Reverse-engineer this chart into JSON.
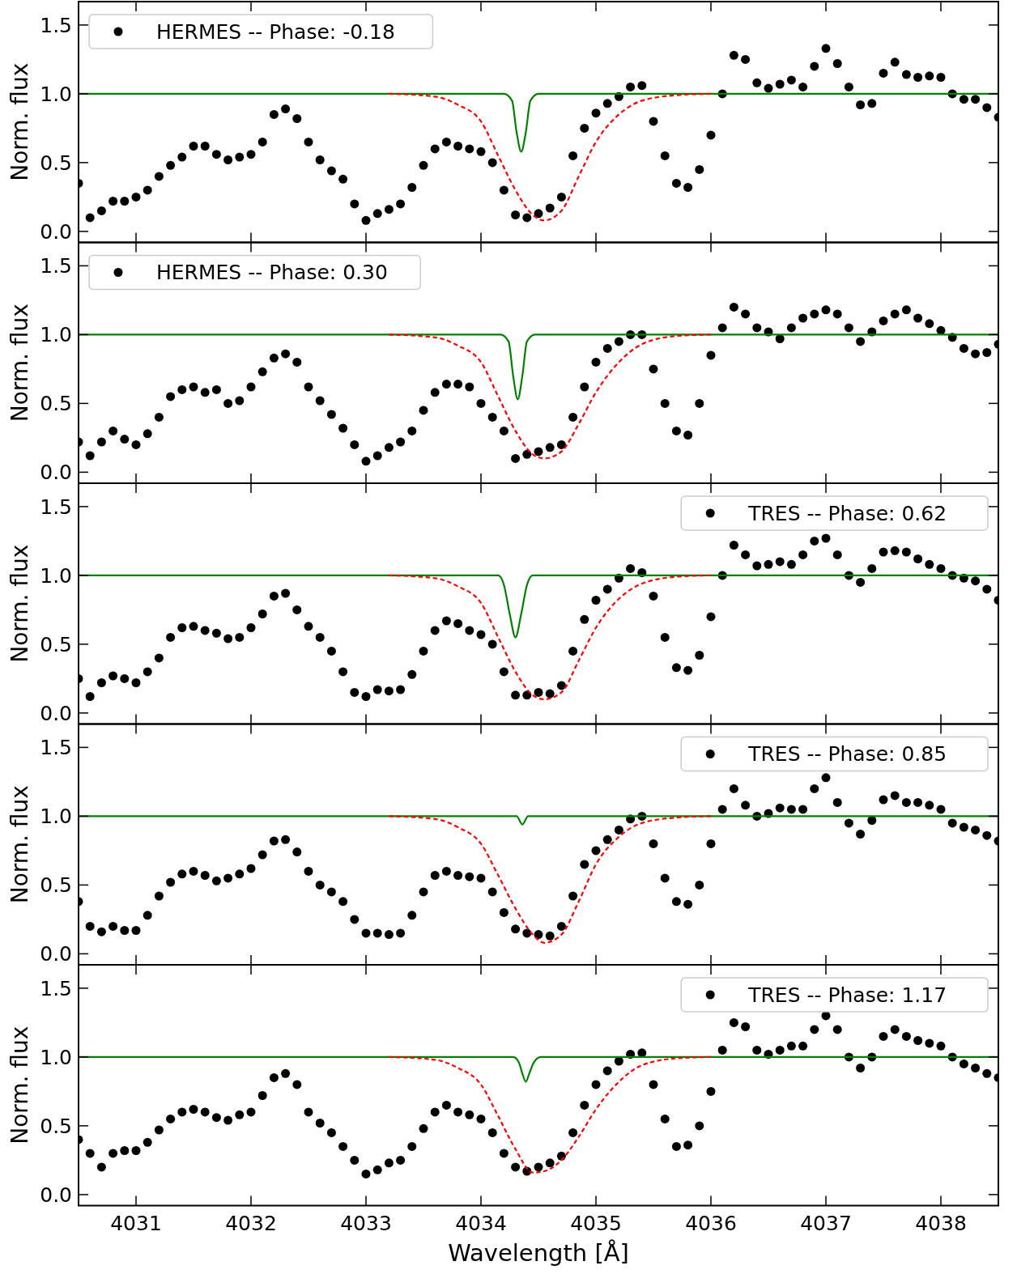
{
  "chart_data": [
    {
      "type": "scatter",
      "ylabel": "Norm. flux",
      "xlim": [
        4030.5,
        4038.5
      ],
      "ylim": [
        -0.08,
        1.67
      ],
      "xticks": [
        4031,
        4032,
        4033,
        4034,
        4035,
        4036,
        4037,
        4038
      ],
      "yticks": [
        {
          "value": 0,
          "label": "0.0"
        },
        {
          "value": 0.5,
          "label": "0.5"
        },
        {
          "value": 1,
          "label": "1.0"
        },
        {
          "value": 1.5,
          "label": "1.5"
        }
      ],
      "tick_labels": "y",
      "legend": "top left",
      "marker": "circle",
      "x": [
        4030.5,
        4030.6,
        4030.7,
        4030.8,
        4030.9,
        4031.0,
        4031.1,
        4031.2,
        4031.3,
        4031.4,
        4031.5,
        4031.6,
        4031.7,
        4031.8,
        4031.9,
        4032.0,
        4032.1,
        4032.2,
        4032.3,
        4032.4,
        4032.5,
        4032.6,
        4032.7,
        4032.8,
        4032.9,
        4033.0,
        4033.1,
        4033.2,
        4033.3,
        4033.4,
        4033.5,
        4033.6,
        4033.7,
        4033.8,
        4033.9,
        4034.0,
        4034.1,
        4034.2,
        4034.3,
        4034.4,
        4034.5,
        4034.6,
        4034.7,
        4034.8,
        4034.9,
        4035.0,
        4035.1,
        4035.2,
        4035.3,
        4035.4,
        4035.5,
        4035.6,
        4035.7,
        4035.8,
        4035.9,
        4036.0,
        4036.1,
        4036.2,
        4036.3,
        4036.4,
        4036.5,
        4036.6,
        4036.7,
        4036.8,
        4036.9,
        4037.0,
        4037.1,
        4037.2,
        4037.3,
        4037.4,
        4037.5,
        4037.6,
        4037.7,
        4037.8,
        4037.9,
        4038.0,
        4038.1,
        4038.2,
        4038.3,
        4038.4,
        4038.5
      ],
      "series": [
        {
          "name": "HERMES -- Phase: -0.18",
          "color": "#000000",
          "values": [
            0.35,
            0.1,
            0.15,
            0.22,
            0.22,
            0.25,
            0.3,
            0.4,
            0.48,
            0.54,
            0.62,
            0.62,
            0.56,
            0.52,
            0.54,
            0.56,
            0.65,
            0.85,
            0.89,
            0.82,
            0.65,
            0.52,
            0.44,
            0.38,
            0.2,
            0.08,
            0.13,
            0.16,
            0.2,
            0.32,
            0.48,
            0.6,
            0.65,
            0.62,
            0.6,
            0.58,
            0.5,
            0.3,
            0.12,
            0.1,
            0.13,
            0.17,
            0.25,
            0.55,
            0.75,
            0.86,
            0.93,
            0.98,
            1.05,
            1.06,
            0.8,
            0.55,
            0.35,
            0.32,
            0.45,
            0.7,
            1.0,
            1.28,
            1.25,
            1.08,
            1.04,
            1.07,
            1.1,
            1.05,
            1.2,
            1.33,
            1.22,
            1.05,
            0.92,
            0.93,
            1.15,
            1.23,
            1.14,
            1.12,
            1.13,
            1.12,
            1.0,
            0.96,
            0.96,
            0.9,
            0.83
          ]
        },
        {
          "type": "line",
          "color": "#ff0000",
          "line_style": "dashed",
          "x": [
            4033.2,
            4033.6,
            4033.8,
            4034.0,
            4034.15,
            4034.3,
            4034.45,
            4034.55,
            4034.7,
            4034.85,
            4035.0,
            4035.2,
            4035.4,
            4035.7,
            4036.0
          ],
          "marker": "none",
          "values": [
            1.0,
            0.98,
            0.92,
            0.8,
            0.55,
            0.3,
            0.12,
            0.08,
            0.15,
            0.4,
            0.65,
            0.85,
            0.95,
            0.99,
            1.0
          ]
        },
        {
          "type": "line",
          "color": "#008000",
          "line_style": "solid",
          "marker": "none",
          "x": [
            4030.5,
            4034.2,
            4034.27,
            4034.31,
            4034.35,
            4034.39,
            4034.43,
            4034.5,
            4038.5
          ],
          "values": [
            1.0,
            1.0,
            0.95,
            0.72,
            0.58,
            0.72,
            0.95,
            1.0,
            1.0
          ]
        }
      ]
    },
    {
      "type": "scatter",
      "ylabel": "Norm. flux",
      "xlim": [
        4030.5,
        4038.5
      ],
      "ylim": [
        -0.08,
        1.67
      ],
      "xticks": [
        4031,
        4032,
        4033,
        4034,
        4035,
        4036,
        4037,
        4038
      ],
      "yticks": [
        {
          "value": 0,
          "label": "0.0"
        },
        {
          "value": 0.5,
          "label": "0.5"
        },
        {
          "value": 1,
          "label": "1.0"
        },
        {
          "value": 1.5,
          "label": "1.5"
        }
      ],
      "tick_labels": "y",
      "legend": "top left",
      "marker": "circle",
      "x": [
        4030.5,
        4030.6,
        4030.7,
        4030.8,
        4030.9,
        4031.0,
        4031.1,
        4031.2,
        4031.3,
        4031.4,
        4031.5,
        4031.6,
        4031.7,
        4031.8,
        4031.9,
        4032.0,
        4032.1,
        4032.2,
        4032.3,
        4032.4,
        4032.5,
        4032.6,
        4032.7,
        4032.8,
        4032.9,
        4033.0,
        4033.1,
        4033.2,
        4033.3,
        4033.4,
        4033.5,
        4033.6,
        4033.7,
        4033.8,
        4033.9,
        4034.0,
        4034.1,
        4034.2,
        4034.3,
        4034.4,
        4034.5,
        4034.6,
        4034.7,
        4034.8,
        4034.9,
        4035.0,
        4035.1,
        4035.2,
        4035.3,
        4035.4,
        4035.5,
        4035.6,
        4035.7,
        4035.8,
        4035.9,
        4036.0,
        4036.1,
        4036.2,
        4036.3,
        4036.4,
        4036.5,
        4036.6,
        4036.7,
        4036.8,
        4036.9,
        4037.0,
        4037.1,
        4037.2,
        4037.3,
        4037.4,
        4037.5,
        4037.6,
        4037.7,
        4037.8,
        4037.9,
        4038.0,
        4038.1,
        4038.2,
        4038.3,
        4038.4,
        4038.5
      ],
      "series": [
        {
          "name": "HERMES -- Phase: 0.30",
          "color": "#000000",
          "values": [
            0.22,
            0.12,
            0.22,
            0.3,
            0.24,
            0.2,
            0.28,
            0.4,
            0.55,
            0.6,
            0.62,
            0.58,
            0.6,
            0.5,
            0.52,
            0.62,
            0.73,
            0.83,
            0.86,
            0.8,
            0.62,
            0.52,
            0.42,
            0.32,
            0.2,
            0.08,
            0.12,
            0.18,
            0.22,
            0.3,
            0.45,
            0.58,
            0.64,
            0.64,
            0.62,
            0.5,
            0.4,
            0.3,
            0.1,
            0.13,
            0.15,
            0.18,
            0.2,
            0.4,
            0.62,
            0.8,
            0.9,
            0.95,
            1.0,
            1.0,
            0.75,
            0.5,
            0.3,
            0.27,
            0.5,
            0.85,
            1.05,
            1.2,
            1.15,
            1.05,
            1.02,
            0.97,
            1.05,
            1.12,
            1.15,
            1.18,
            1.15,
            1.05,
            0.95,
            1.02,
            1.1,
            1.15,
            1.18,
            1.12,
            1.08,
            1.03,
            0.98,
            0.9,
            0.86,
            0.87,
            0.93
          ]
        },
        {
          "type": "line",
          "color": "#ff0000",
          "line_style": "dashed",
          "x": [
            4033.2,
            4033.6,
            4033.8,
            4034.0,
            4034.15,
            4034.3,
            4034.45,
            4034.55,
            4034.7,
            4034.85,
            4035.0,
            4035.2,
            4035.4,
            4035.7,
            4036.0
          ],
          "marker": "none",
          "values": [
            1.0,
            0.98,
            0.92,
            0.8,
            0.55,
            0.3,
            0.13,
            0.1,
            0.15,
            0.35,
            0.58,
            0.8,
            0.93,
            0.99,
            1.0
          ]
        },
        {
          "type": "line",
          "color": "#008000",
          "line_style": "solid",
          "marker": "none",
          "x": [
            4030.5,
            4034.17,
            4034.24,
            4034.28,
            4034.32,
            4034.36,
            4034.4,
            4034.47,
            4038.5
          ],
          "values": [
            1.0,
            1.0,
            0.95,
            0.7,
            0.53,
            0.7,
            0.95,
            1.0,
            1.0
          ]
        }
      ]
    },
    {
      "type": "scatter",
      "ylabel": "Norm. flux",
      "xlim": [
        4030.5,
        4038.5
      ],
      "ylim": [
        -0.08,
        1.67
      ],
      "xticks": [
        4031,
        4032,
        4033,
        4034,
        4035,
        4036,
        4037,
        4038
      ],
      "yticks": [
        {
          "value": 0,
          "label": "0.0"
        },
        {
          "value": 0.5,
          "label": "0.5"
        },
        {
          "value": 1,
          "label": "1.0"
        },
        {
          "value": 1.5,
          "label": "1.5"
        }
      ],
      "tick_labels": "y",
      "legend": "top right",
      "marker": "circle",
      "x": [
        4030.5,
        4030.6,
        4030.7,
        4030.8,
        4030.9,
        4031.0,
        4031.1,
        4031.2,
        4031.3,
        4031.4,
        4031.5,
        4031.6,
        4031.7,
        4031.8,
        4031.9,
        4032.0,
        4032.1,
        4032.2,
        4032.3,
        4032.4,
        4032.5,
        4032.6,
        4032.7,
        4032.8,
        4032.9,
        4033.0,
        4033.1,
        4033.2,
        4033.3,
        4033.4,
        4033.5,
        4033.6,
        4033.7,
        4033.8,
        4033.9,
        4034.0,
        4034.1,
        4034.2,
        4034.3,
        4034.4,
        4034.5,
        4034.6,
        4034.7,
        4034.8,
        4034.9,
        4035.0,
        4035.1,
        4035.2,
        4035.3,
        4035.4,
        4035.5,
        4035.6,
        4035.7,
        4035.8,
        4035.9,
        4036.0,
        4036.1,
        4036.2,
        4036.3,
        4036.4,
        4036.5,
        4036.6,
        4036.7,
        4036.8,
        4036.9,
        4037.0,
        4037.1,
        4037.2,
        4037.3,
        4037.4,
        4037.5,
        4037.6,
        4037.7,
        4037.8,
        4037.9,
        4038.0,
        4038.1,
        4038.2,
        4038.3,
        4038.4,
        4038.5
      ],
      "series": [
        {
          "name": "TRES -- Phase: 0.62",
          "color": "#000000",
          "values": [
            0.25,
            0.12,
            0.22,
            0.27,
            0.25,
            0.22,
            0.3,
            0.4,
            0.55,
            0.62,
            0.63,
            0.6,
            0.58,
            0.54,
            0.55,
            0.62,
            0.72,
            0.85,
            0.87,
            0.75,
            0.63,
            0.55,
            0.45,
            0.3,
            0.15,
            0.12,
            0.17,
            0.16,
            0.17,
            0.28,
            0.45,
            0.6,
            0.67,
            0.65,
            0.6,
            0.57,
            0.5,
            0.3,
            0.13,
            0.13,
            0.15,
            0.14,
            0.2,
            0.45,
            0.68,
            0.82,
            0.9,
            0.98,
            1.05,
            1.02,
            0.85,
            0.55,
            0.33,
            0.31,
            0.42,
            0.7,
            1.0,
            1.22,
            1.15,
            1.07,
            1.08,
            1.1,
            1.08,
            1.15,
            1.25,
            1.27,
            1.15,
            1.0,
            0.95,
            1.05,
            1.17,
            1.18,
            1.17,
            1.12,
            1.08,
            1.05,
            1.0,
            0.98,
            0.96,
            0.9,
            0.82
          ]
        },
        {
          "type": "line",
          "color": "#ff0000",
          "line_style": "dashed",
          "x": [
            4033.2,
            4033.6,
            4033.8,
            4034.0,
            4034.15,
            4034.3,
            4034.45,
            4034.55,
            4034.7,
            4034.85,
            4035.0,
            4035.2,
            4035.4,
            4035.7,
            4036.0
          ],
          "marker": "none",
          "values": [
            1.0,
            0.98,
            0.92,
            0.8,
            0.55,
            0.3,
            0.13,
            0.1,
            0.15,
            0.38,
            0.62,
            0.83,
            0.94,
            0.99,
            1.0
          ]
        },
        {
          "type": "line",
          "color": "#008000",
          "line_style": "solid",
          "marker": "none",
          "x": [
            4030.5,
            4034.15,
            4034.2,
            4034.25,
            4034.3,
            4034.35,
            4034.4,
            4034.45,
            4038.5
          ],
          "values": [
            1.0,
            1.0,
            0.93,
            0.72,
            0.55,
            0.72,
            0.93,
            1.0,
            1.0
          ]
        }
      ]
    },
    {
      "type": "scatter",
      "ylabel": "Norm. flux",
      "xlim": [
        4030.5,
        4038.5
      ],
      "ylim": [
        -0.08,
        1.67
      ],
      "xticks": [
        4031,
        4032,
        4033,
        4034,
        4035,
        4036,
        4037,
        4038
      ],
      "yticks": [
        {
          "value": 0,
          "label": "0.0"
        },
        {
          "value": 0.5,
          "label": "0.5"
        },
        {
          "value": 1,
          "label": "1.0"
        },
        {
          "value": 1.5,
          "label": "1.5"
        }
      ],
      "tick_labels": "y",
      "legend": "top right",
      "marker": "circle",
      "x": [
        4030.5,
        4030.6,
        4030.7,
        4030.8,
        4030.9,
        4031.0,
        4031.1,
        4031.2,
        4031.3,
        4031.4,
        4031.5,
        4031.6,
        4031.7,
        4031.8,
        4031.9,
        4032.0,
        4032.1,
        4032.2,
        4032.3,
        4032.4,
        4032.5,
        4032.6,
        4032.7,
        4032.8,
        4032.9,
        4033.0,
        4033.1,
        4033.2,
        4033.3,
        4033.4,
        4033.5,
        4033.6,
        4033.7,
        4033.8,
        4033.9,
        4034.0,
        4034.1,
        4034.2,
        4034.3,
        4034.4,
        4034.5,
        4034.6,
        4034.7,
        4034.8,
        4034.9,
        4035.0,
        4035.1,
        4035.2,
        4035.3,
        4035.4,
        4035.5,
        4035.6,
        4035.7,
        4035.8,
        4035.9,
        4036.0,
        4036.1,
        4036.2,
        4036.3,
        4036.4,
        4036.5,
        4036.6,
        4036.7,
        4036.8,
        4036.9,
        4037.0,
        4037.1,
        4037.2,
        4037.3,
        4037.4,
        4037.5,
        4037.6,
        4037.7,
        4037.8,
        4037.9,
        4038.0,
        4038.1,
        4038.2,
        4038.3,
        4038.4,
        4038.5
      ],
      "series": [
        {
          "name": "TRES -- Phase: 0.85",
          "color": "#000000",
          "values": [
            0.38,
            0.2,
            0.16,
            0.2,
            0.17,
            0.17,
            0.28,
            0.42,
            0.52,
            0.58,
            0.6,
            0.57,
            0.53,
            0.55,
            0.58,
            0.62,
            0.72,
            0.82,
            0.83,
            0.74,
            0.6,
            0.5,
            0.45,
            0.38,
            0.25,
            0.15,
            0.15,
            0.14,
            0.15,
            0.28,
            0.45,
            0.57,
            0.6,
            0.57,
            0.56,
            0.55,
            0.45,
            0.3,
            0.18,
            0.15,
            0.14,
            0.13,
            0.2,
            0.42,
            0.65,
            0.75,
            0.83,
            0.9,
            0.98,
            1.0,
            0.8,
            0.55,
            0.38,
            0.36,
            0.5,
            0.8,
            1.05,
            1.2,
            1.08,
            1.0,
            1.02,
            1.06,
            1.05,
            1.05,
            1.2,
            1.28,
            1.1,
            0.95,
            0.87,
            0.97,
            1.12,
            1.15,
            1.1,
            1.1,
            1.08,
            1.05,
            0.95,
            0.92,
            0.9,
            0.86,
            0.82
          ]
        },
        {
          "type": "line",
          "color": "#ff0000",
          "line_style": "dashed",
          "x": [
            4033.2,
            4033.6,
            4033.8,
            4034.0,
            4034.15,
            4034.3,
            4034.45,
            4034.55,
            4034.7,
            4034.85,
            4035.0,
            4035.2,
            4035.4,
            4035.7,
            4036.0
          ],
          "marker": "none",
          "values": [
            1.0,
            0.98,
            0.92,
            0.8,
            0.57,
            0.33,
            0.14,
            0.08,
            0.14,
            0.38,
            0.65,
            0.85,
            0.95,
            0.99,
            1.0
          ]
        },
        {
          "type": "line",
          "color": "#008000",
          "line_style": "solid",
          "marker": "none",
          "x": [
            4030.5,
            4034.31,
            4034.36,
            4034.41,
            4038.5
          ],
          "values": [
            1.0,
            1.0,
            0.94,
            1.0,
            1.0
          ]
        }
      ]
    },
    {
      "type": "scatter",
      "xlabel": "Wavelength [Å]",
      "ylabel": "Norm. flux",
      "xlim": [
        4030.5,
        4038.5
      ],
      "ylim": [
        -0.08,
        1.67
      ],
      "xticks": [
        4031,
        4032,
        4033,
        4034,
        4035,
        4036,
        4037,
        4038
      ],
      "yticks": [
        {
          "value": 0,
          "label": "0.0"
        },
        {
          "value": 0.5,
          "label": "0.5"
        },
        {
          "value": 1,
          "label": "1.0"
        },
        {
          "value": 1.5,
          "label": "1.5"
        }
      ],
      "legend": "top right",
      "marker": "circle",
      "x": [
        4030.5,
        4030.6,
        4030.7,
        4030.8,
        4030.9,
        4031.0,
        4031.1,
        4031.2,
        4031.3,
        4031.4,
        4031.5,
        4031.6,
        4031.7,
        4031.8,
        4031.9,
        4032.0,
        4032.1,
        4032.2,
        4032.3,
        4032.4,
        4032.5,
        4032.6,
        4032.7,
        4032.8,
        4032.9,
        4033.0,
        4033.1,
        4033.2,
        4033.3,
        4033.4,
        4033.5,
        4033.6,
        4033.7,
        4033.8,
        4033.9,
        4034.0,
        4034.1,
        4034.2,
        4034.3,
        4034.4,
        4034.5,
        4034.6,
        4034.7,
        4034.8,
        4034.9,
        4035.0,
        4035.1,
        4035.2,
        4035.3,
        4035.4,
        4035.5,
        4035.6,
        4035.7,
        4035.8,
        4035.9,
        4036.0,
        4036.1,
        4036.2,
        4036.3,
        4036.4,
        4036.5,
        4036.6,
        4036.7,
        4036.8,
        4036.9,
        4037.0,
        4037.1,
        4037.2,
        4037.3,
        4037.4,
        4037.5,
        4037.6,
        4037.7,
        4037.8,
        4037.9,
        4038.0,
        4038.1,
        4038.2,
        4038.3,
        4038.4,
        4038.5
      ],
      "series": [
        {
          "name": "TRES -- Phase: 1.17",
          "color": "#000000",
          "values": [
            0.4,
            0.3,
            0.2,
            0.3,
            0.32,
            0.32,
            0.38,
            0.47,
            0.55,
            0.6,
            0.62,
            0.6,
            0.56,
            0.54,
            0.58,
            0.6,
            0.72,
            0.85,
            0.88,
            0.8,
            0.6,
            0.52,
            0.45,
            0.35,
            0.25,
            0.15,
            0.18,
            0.23,
            0.25,
            0.35,
            0.48,
            0.6,
            0.65,
            0.6,
            0.58,
            0.55,
            0.45,
            0.3,
            0.2,
            0.17,
            0.2,
            0.23,
            0.28,
            0.45,
            0.65,
            0.8,
            0.9,
            0.97,
            1.02,
            1.03,
            0.8,
            0.55,
            0.35,
            0.36,
            0.5,
            0.75,
            1.05,
            1.25,
            1.22,
            1.05,
            1.02,
            1.05,
            1.08,
            1.08,
            1.2,
            1.3,
            1.2,
            1.0,
            0.92,
            1.0,
            1.15,
            1.2,
            1.15,
            1.12,
            1.1,
            1.08,
            1.0,
            0.95,
            0.92,
            0.88,
            0.85
          ]
        },
        {
          "type": "line",
          "color": "#ff0000",
          "line_style": "dashed",
          "x": [
            4033.2,
            4033.6,
            4033.8,
            4034.0,
            4034.15,
            4034.3,
            4034.45,
            4034.55,
            4034.7,
            4034.85,
            4035.0,
            4035.2,
            4035.4,
            4035.7,
            4036.0
          ],
          "marker": "none",
          "values": [
            1.0,
            0.98,
            0.92,
            0.8,
            0.57,
            0.33,
            0.16,
            0.17,
            0.25,
            0.42,
            0.62,
            0.82,
            0.94,
            0.99,
            1.0
          ]
        },
        {
          "type": "line",
          "color": "#008000",
          "line_style": "solid",
          "marker": "none",
          "x": [
            4030.5,
            4034.28,
            4034.33,
            4034.36,
            4034.39,
            4034.42,
            4034.46,
            4034.52,
            4038.5
          ],
          "values": [
            1.0,
            1.0,
            0.96,
            0.88,
            0.82,
            0.88,
            0.96,
            1.0,
            1.0
          ]
        }
      ]
    }
  ]
}
